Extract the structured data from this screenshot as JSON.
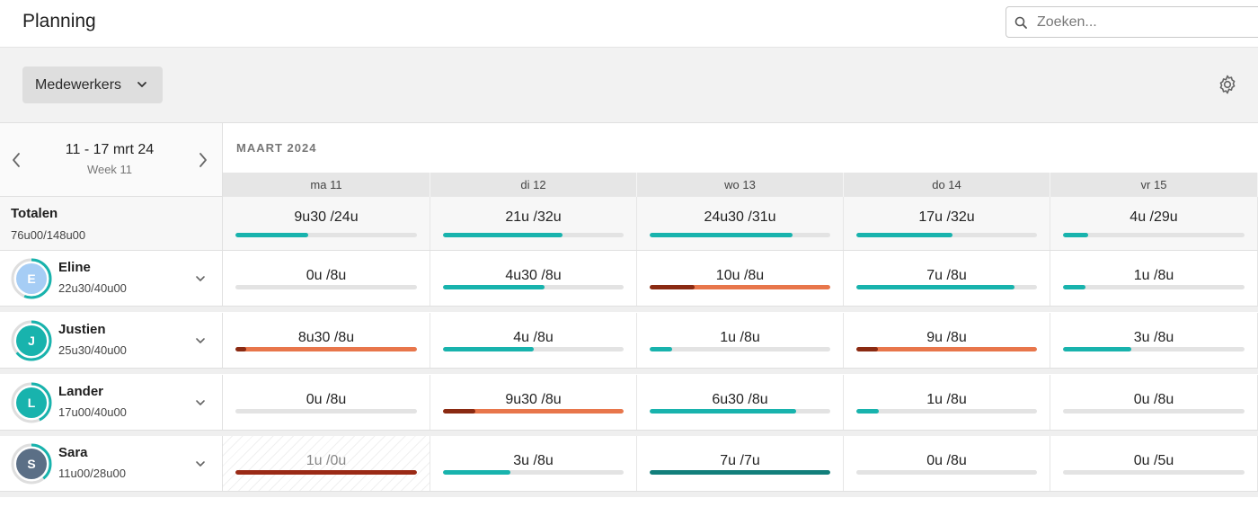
{
  "header": {
    "title": "Planning",
    "search_placeholder": "Zoeken..."
  },
  "toolbar": {
    "filter_label": "Medewerkers"
  },
  "week": {
    "range": "11 - 17 mrt 24",
    "label": "Week 11"
  },
  "month": "MAART 2024",
  "days": [
    "ma 11",
    "di 12",
    "wo 13",
    "do 14",
    "vr 15"
  ],
  "totals": {
    "title": "Totalen",
    "summary": "76u00/148u00",
    "cells": [
      {
        "text": "9u30 /24u",
        "fill": 0.4,
        "status": "normal"
      },
      {
        "text": "21u /32u",
        "fill": 0.66,
        "status": "normal"
      },
      {
        "text": "24u30 /31u",
        "fill": 0.79,
        "status": "normal"
      },
      {
        "text": "17u /32u",
        "fill": 0.53,
        "status": "normal"
      },
      {
        "text": "4u /29u",
        "fill": 0.14,
        "status": "normal"
      }
    ]
  },
  "employees": [
    {
      "initial": "E",
      "name": "Eline",
      "hours": "22u30/40u00",
      "avatar_color": "#a6cdf5",
      "ring_fill": 0.56,
      "cells": [
        {
          "text": "0u /8u",
          "fill": 0,
          "status": "normal"
        },
        {
          "text": "4u30 /8u",
          "fill": 0.56,
          "status": "normal"
        },
        {
          "text": "10u /8u",
          "fill": 1,
          "over": 0.25,
          "status": "over"
        },
        {
          "text": "7u /8u",
          "fill": 0.875,
          "status": "normal"
        },
        {
          "text": "1u /8u",
          "fill": 0.125,
          "status": "normal"
        }
      ]
    },
    {
      "initial": "J",
      "name": "Justien",
      "hours": "25u30/40u00",
      "avatar_color": "#18b3ad",
      "ring_fill": 0.64,
      "cells": [
        {
          "text": "8u30 /8u",
          "fill": 1,
          "over": 0.06,
          "status": "over"
        },
        {
          "text": "4u /8u",
          "fill": 0.5,
          "status": "normal"
        },
        {
          "text": "1u /8u",
          "fill": 0.125,
          "status": "normal"
        },
        {
          "text": "9u /8u",
          "fill": 1,
          "over": 0.12,
          "status": "over"
        },
        {
          "text": "3u /8u",
          "fill": 0.375,
          "status": "normal"
        }
      ]
    },
    {
      "initial": "L",
      "name": "Lander",
      "hours": "17u00/40u00",
      "avatar_color": "#18b3ad",
      "ring_fill": 0.43,
      "cells": [
        {
          "text": "0u /8u",
          "fill": 0,
          "status": "normal"
        },
        {
          "text": "9u30 /8u",
          "fill": 1,
          "over": 0.18,
          "status": "over"
        },
        {
          "text": "6u30 /8u",
          "fill": 0.81,
          "status": "normal"
        },
        {
          "text": "1u /8u",
          "fill": 0.125,
          "status": "normal"
        },
        {
          "text": "0u /8u",
          "fill": 0,
          "status": "normal"
        }
      ]
    },
    {
      "initial": "S",
      "name": "Sara",
      "hours": "11u00/28u00",
      "avatar_color": "#5b6f86",
      "ring_fill": 0.39,
      "cells": [
        {
          "text": "1u /0u",
          "fill": 1,
          "status": "unavailable"
        },
        {
          "text": "3u /8u",
          "fill": 0.375,
          "status": "normal"
        },
        {
          "text": "7u /7u",
          "fill": 1,
          "status": "full"
        },
        {
          "text": "0u /8u",
          "fill": 0,
          "status": "normal"
        },
        {
          "text": "0u /5u",
          "fill": 0,
          "status": "normal"
        }
      ]
    }
  ],
  "colors": {
    "teal": "#18b3ad",
    "teal_dark": "#127f7b",
    "orange": "#e8764b",
    "over_dark": "#8a2a12",
    "unavailable": "#9a2a16"
  },
  "icons": {
    "search": "search-icon",
    "chevron_down": "chevron-down-icon",
    "gear": "gear-icon",
    "prev": "chevron-left-icon",
    "next": "chevron-right-icon"
  }
}
